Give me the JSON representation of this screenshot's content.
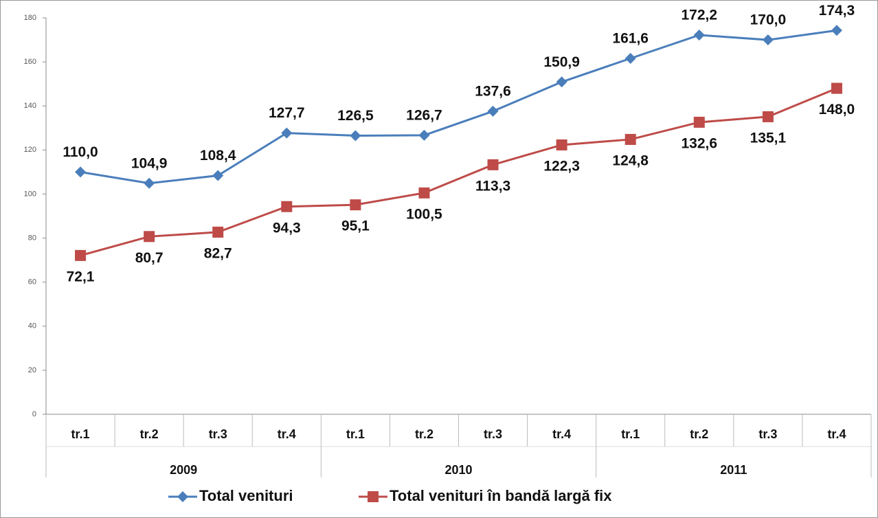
{
  "chart_data": {
    "type": "line",
    "categories": [
      "tr.1",
      "tr.2",
      "tr.3",
      "tr.4",
      "tr.1",
      "tr.2",
      "tr.3",
      "tr.4",
      "tr.1",
      "tr.2",
      "tr.3",
      "tr.4"
    ],
    "year_groups": [
      "2009",
      "2010",
      "2011"
    ],
    "series": [
      {
        "name": "Total venituri",
        "color": "#4a7ebb",
        "marker": "diamond",
        "values": [
          110.0,
          104.9,
          108.4,
          127.7,
          126.5,
          126.7,
          137.6,
          150.9,
          161.6,
          172.2,
          170.0,
          174.3
        ],
        "value_labels": [
          "110,0",
          "104,9",
          "108,4",
          "127,7",
          "126,5",
          "126,7",
          "137,6",
          "150,9",
          "161,6",
          "172,2",
          "170,0",
          "174,3"
        ]
      },
      {
        "name": "Total venituri în bandă largă fix",
        "color": "#be4b48",
        "marker": "square",
        "values": [
          72.1,
          80.7,
          82.7,
          94.3,
          95.1,
          100.5,
          113.3,
          122.3,
          124.8,
          132.6,
          135.1,
          148.0
        ],
        "value_labels": [
          "72,1",
          "80,7",
          "82,7",
          "94,3",
          "95,1",
          "100,5",
          "113,3",
          "122,3",
          "124,8",
          "132,6",
          "135,1",
          "148,0"
        ]
      }
    ],
    "ylim": [
      0,
      180
    ],
    "yticks": [
      0,
      20,
      40,
      60,
      80,
      100,
      120,
      140,
      160,
      180
    ],
    "grid": false,
    "legend": "bottom"
  }
}
